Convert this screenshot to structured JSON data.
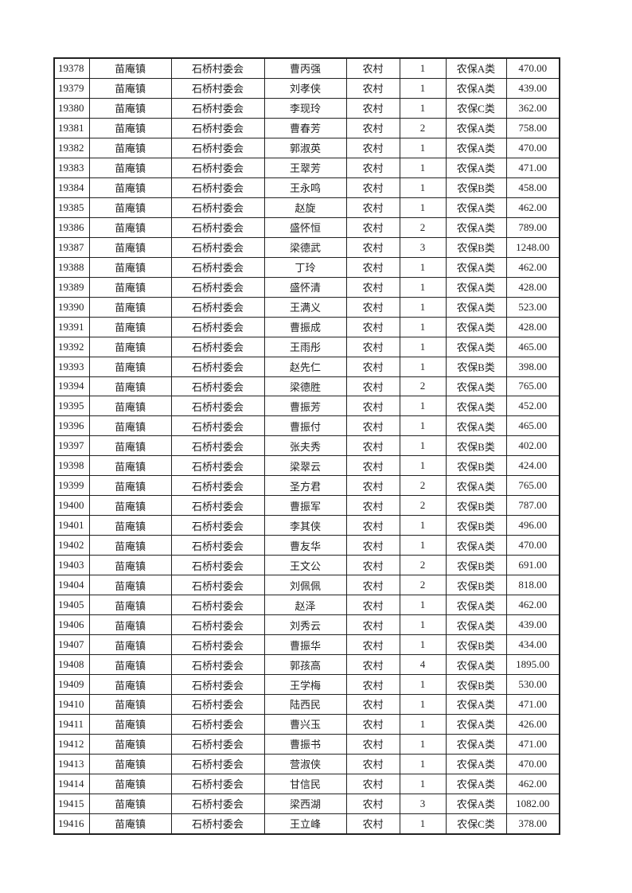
{
  "table": {
    "rows": [
      [
        "19378",
        "苗庵镇",
        "石桥村委会",
        "曹丙强",
        "农村",
        "1",
        "农保A类",
        "470.00"
      ],
      [
        "19379",
        "苗庵镇",
        "石桥村委会",
        "刘孝侠",
        "农村",
        "1",
        "农保A类",
        "439.00"
      ],
      [
        "19380",
        "苗庵镇",
        "石桥村委会",
        "李现玲",
        "农村",
        "1",
        "农保C类",
        "362.00"
      ],
      [
        "19381",
        "苗庵镇",
        "石桥村委会",
        "曹春芳",
        "农村",
        "2",
        "农保A类",
        "758.00"
      ],
      [
        "19382",
        "苗庵镇",
        "石桥村委会",
        "郭淑英",
        "农村",
        "1",
        "农保A类",
        "470.00"
      ],
      [
        "19383",
        "苗庵镇",
        "石桥村委会",
        "王翠芳",
        "农村",
        "1",
        "农保A类",
        "471.00"
      ],
      [
        "19384",
        "苗庵镇",
        "石桥村委会",
        "王永鸣",
        "农村",
        "1",
        "农保B类",
        "458.00"
      ],
      [
        "19385",
        "苗庵镇",
        "石桥村委会",
        "赵旋",
        "农村",
        "1",
        "农保A类",
        "462.00"
      ],
      [
        "19386",
        "苗庵镇",
        "石桥村委会",
        "盛怀恒",
        "农村",
        "2",
        "农保A类",
        "789.00"
      ],
      [
        "19387",
        "苗庵镇",
        "石桥村委会",
        "梁德武",
        "农村",
        "3",
        "农保B类",
        "1248.00"
      ],
      [
        "19388",
        "苗庵镇",
        "石桥村委会",
        "丁玲",
        "农村",
        "1",
        "农保A类",
        "462.00"
      ],
      [
        "19389",
        "苗庵镇",
        "石桥村委会",
        "盛怀清",
        "农村",
        "1",
        "农保A类",
        "428.00"
      ],
      [
        "19390",
        "苗庵镇",
        "石桥村委会",
        "王满义",
        "农村",
        "1",
        "农保A类",
        "523.00"
      ],
      [
        "19391",
        "苗庵镇",
        "石桥村委会",
        "曹振成",
        "农村",
        "1",
        "农保A类",
        "428.00"
      ],
      [
        "19392",
        "苗庵镇",
        "石桥村委会",
        "王雨彤",
        "农村",
        "1",
        "农保A类",
        "465.00"
      ],
      [
        "19393",
        "苗庵镇",
        "石桥村委会",
        "赵先仁",
        "农村",
        "1",
        "农保B类",
        "398.00"
      ],
      [
        "19394",
        "苗庵镇",
        "石桥村委会",
        "梁德胜",
        "农村",
        "2",
        "农保A类",
        "765.00"
      ],
      [
        "19395",
        "苗庵镇",
        "石桥村委会",
        "曹振芳",
        "农村",
        "1",
        "农保A类",
        "452.00"
      ],
      [
        "19396",
        "苗庵镇",
        "石桥村委会",
        "曹振付",
        "农村",
        "1",
        "农保A类",
        "465.00"
      ],
      [
        "19397",
        "苗庵镇",
        "石桥村委会",
        "张夫秀",
        "农村",
        "1",
        "农保B类",
        "402.00"
      ],
      [
        "19398",
        "苗庵镇",
        "石桥村委会",
        "梁翠云",
        "农村",
        "1",
        "农保B类",
        "424.00"
      ],
      [
        "19399",
        "苗庵镇",
        "石桥村委会",
        "圣方君",
        "农村",
        "2",
        "农保A类",
        "765.00"
      ],
      [
        "19400",
        "苗庵镇",
        "石桥村委会",
        "曹振军",
        "农村",
        "2",
        "农保B类",
        "787.00"
      ],
      [
        "19401",
        "苗庵镇",
        "石桥村委会",
        "李其侠",
        "农村",
        "1",
        "农保B类",
        "496.00"
      ],
      [
        "19402",
        "苗庵镇",
        "石桥村委会",
        "曹友华",
        "农村",
        "1",
        "农保A类",
        "470.00"
      ],
      [
        "19403",
        "苗庵镇",
        "石桥村委会",
        "王文公",
        "农村",
        "2",
        "农保B类",
        "691.00"
      ],
      [
        "19404",
        "苗庵镇",
        "石桥村委会",
        "刘佩佩",
        "农村",
        "2",
        "农保B类",
        "818.00"
      ],
      [
        "19405",
        "苗庵镇",
        "石桥村委会",
        "赵泽",
        "农村",
        "1",
        "农保A类",
        "462.00"
      ],
      [
        "19406",
        "苗庵镇",
        "石桥村委会",
        "刘秀云",
        "农村",
        "1",
        "农保A类",
        "439.00"
      ],
      [
        "19407",
        "苗庵镇",
        "石桥村委会",
        "曹振华",
        "农村",
        "1",
        "农保B类",
        "434.00"
      ],
      [
        "19408",
        "苗庵镇",
        "石桥村委会",
        "郭孩高",
        "农村",
        "4",
        "农保A类",
        "1895.00"
      ],
      [
        "19409",
        "苗庵镇",
        "石桥村委会",
        "王学梅",
        "农村",
        "1",
        "农保B类",
        "530.00"
      ],
      [
        "19410",
        "苗庵镇",
        "石桥村委会",
        "陆西民",
        "农村",
        "1",
        "农保A类",
        "471.00"
      ],
      [
        "19411",
        "苗庵镇",
        "石桥村委会",
        "曹兴玉",
        "农村",
        "1",
        "农保A类",
        "426.00"
      ],
      [
        "19412",
        "苗庵镇",
        "石桥村委会",
        "曹振书",
        "农村",
        "1",
        "农保A类",
        "471.00"
      ],
      [
        "19413",
        "苗庵镇",
        "石桥村委会",
        "营淑侠",
        "农村",
        "1",
        "农保A类",
        "470.00"
      ],
      [
        "19414",
        "苗庵镇",
        "石桥村委会",
        "甘信民",
        "农村",
        "1",
        "农保A类",
        "462.00"
      ],
      [
        "19415",
        "苗庵镇",
        "石桥村委会",
        "梁西湖",
        "农村",
        "3",
        "农保A类",
        "1082.00"
      ],
      [
        "19416",
        "苗庵镇",
        "石桥村委会",
        "王立峰",
        "农村",
        "1",
        "农保C类",
        "378.00"
      ]
    ]
  }
}
